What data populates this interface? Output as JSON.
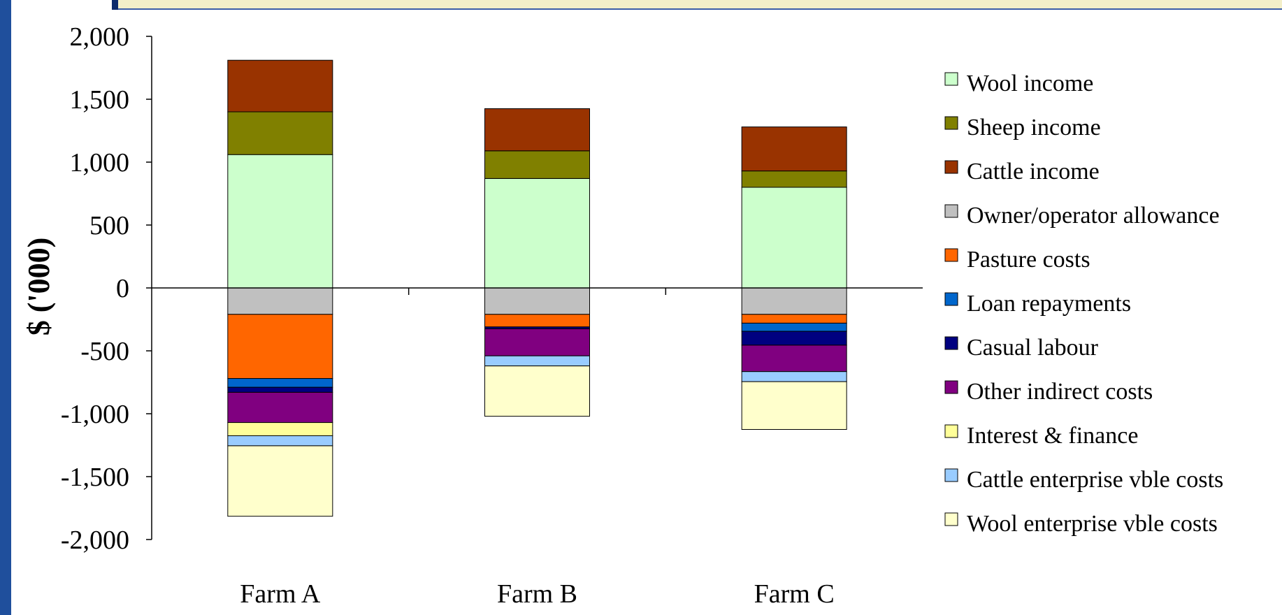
{
  "chart_data": {
    "type": "bar",
    "stacked": true,
    "title": "",
    "xlabel": "",
    "ylabel": "$ ('000)",
    "ylim": [
      -2000,
      2000
    ],
    "yticks": [
      2000,
      1500,
      1000,
      500,
      0,
      -500,
      -1000,
      -1500,
      -2000
    ],
    "ytick_labels": [
      "2,000",
      "1,500",
      "1,000",
      "500",
      "0",
      "-500",
      "-1,000",
      "-1,500",
      "-2,000"
    ],
    "categories": [
      "Farm A",
      "Farm B",
      "Farm C"
    ],
    "legend_position": "right",
    "grid": false,
    "series": [
      {
        "name": "Wool income",
        "color": "#ccffcc",
        "values": [
          1060,
          870,
          800
        ]
      },
      {
        "name": "Sheep income",
        "color": "#808000",
        "values": [
          340,
          220,
          130
        ]
      },
      {
        "name": "Cattle income",
        "color": "#993300",
        "values": [
          410,
          335,
          350
        ]
      },
      {
        "name": "Owner/operator allowance",
        "color": "#c0c0c0",
        "values": [
          -210,
          -210,
          -210
        ]
      },
      {
        "name": "Pasture costs",
        "color": "#ff6600",
        "values": [
          -510,
          -100,
          -70
        ]
      },
      {
        "name": "Loan repayments",
        "color": "#0066cc",
        "values": [
          -70,
          0,
          -65
        ]
      },
      {
        "name": "Casual labour",
        "color": "#000080",
        "values": [
          -40,
          -15,
          -110
        ]
      },
      {
        "name": "Other indirect costs",
        "color": "#800080",
        "values": [
          -240,
          -215,
          -210
        ]
      },
      {
        "name": "Interest & finance",
        "color": "#ffff99",
        "values": [
          -105,
          0,
          0
        ]
      },
      {
        "name": "Cattle enterprise vble costs",
        "color": "#99ccff",
        "values": [
          -80,
          -80,
          -80
        ]
      },
      {
        "name": "Wool enterprise vble costs",
        "color": "#ffffcc",
        "values": [
          -560,
          -400,
          -380
        ]
      }
    ]
  }
}
